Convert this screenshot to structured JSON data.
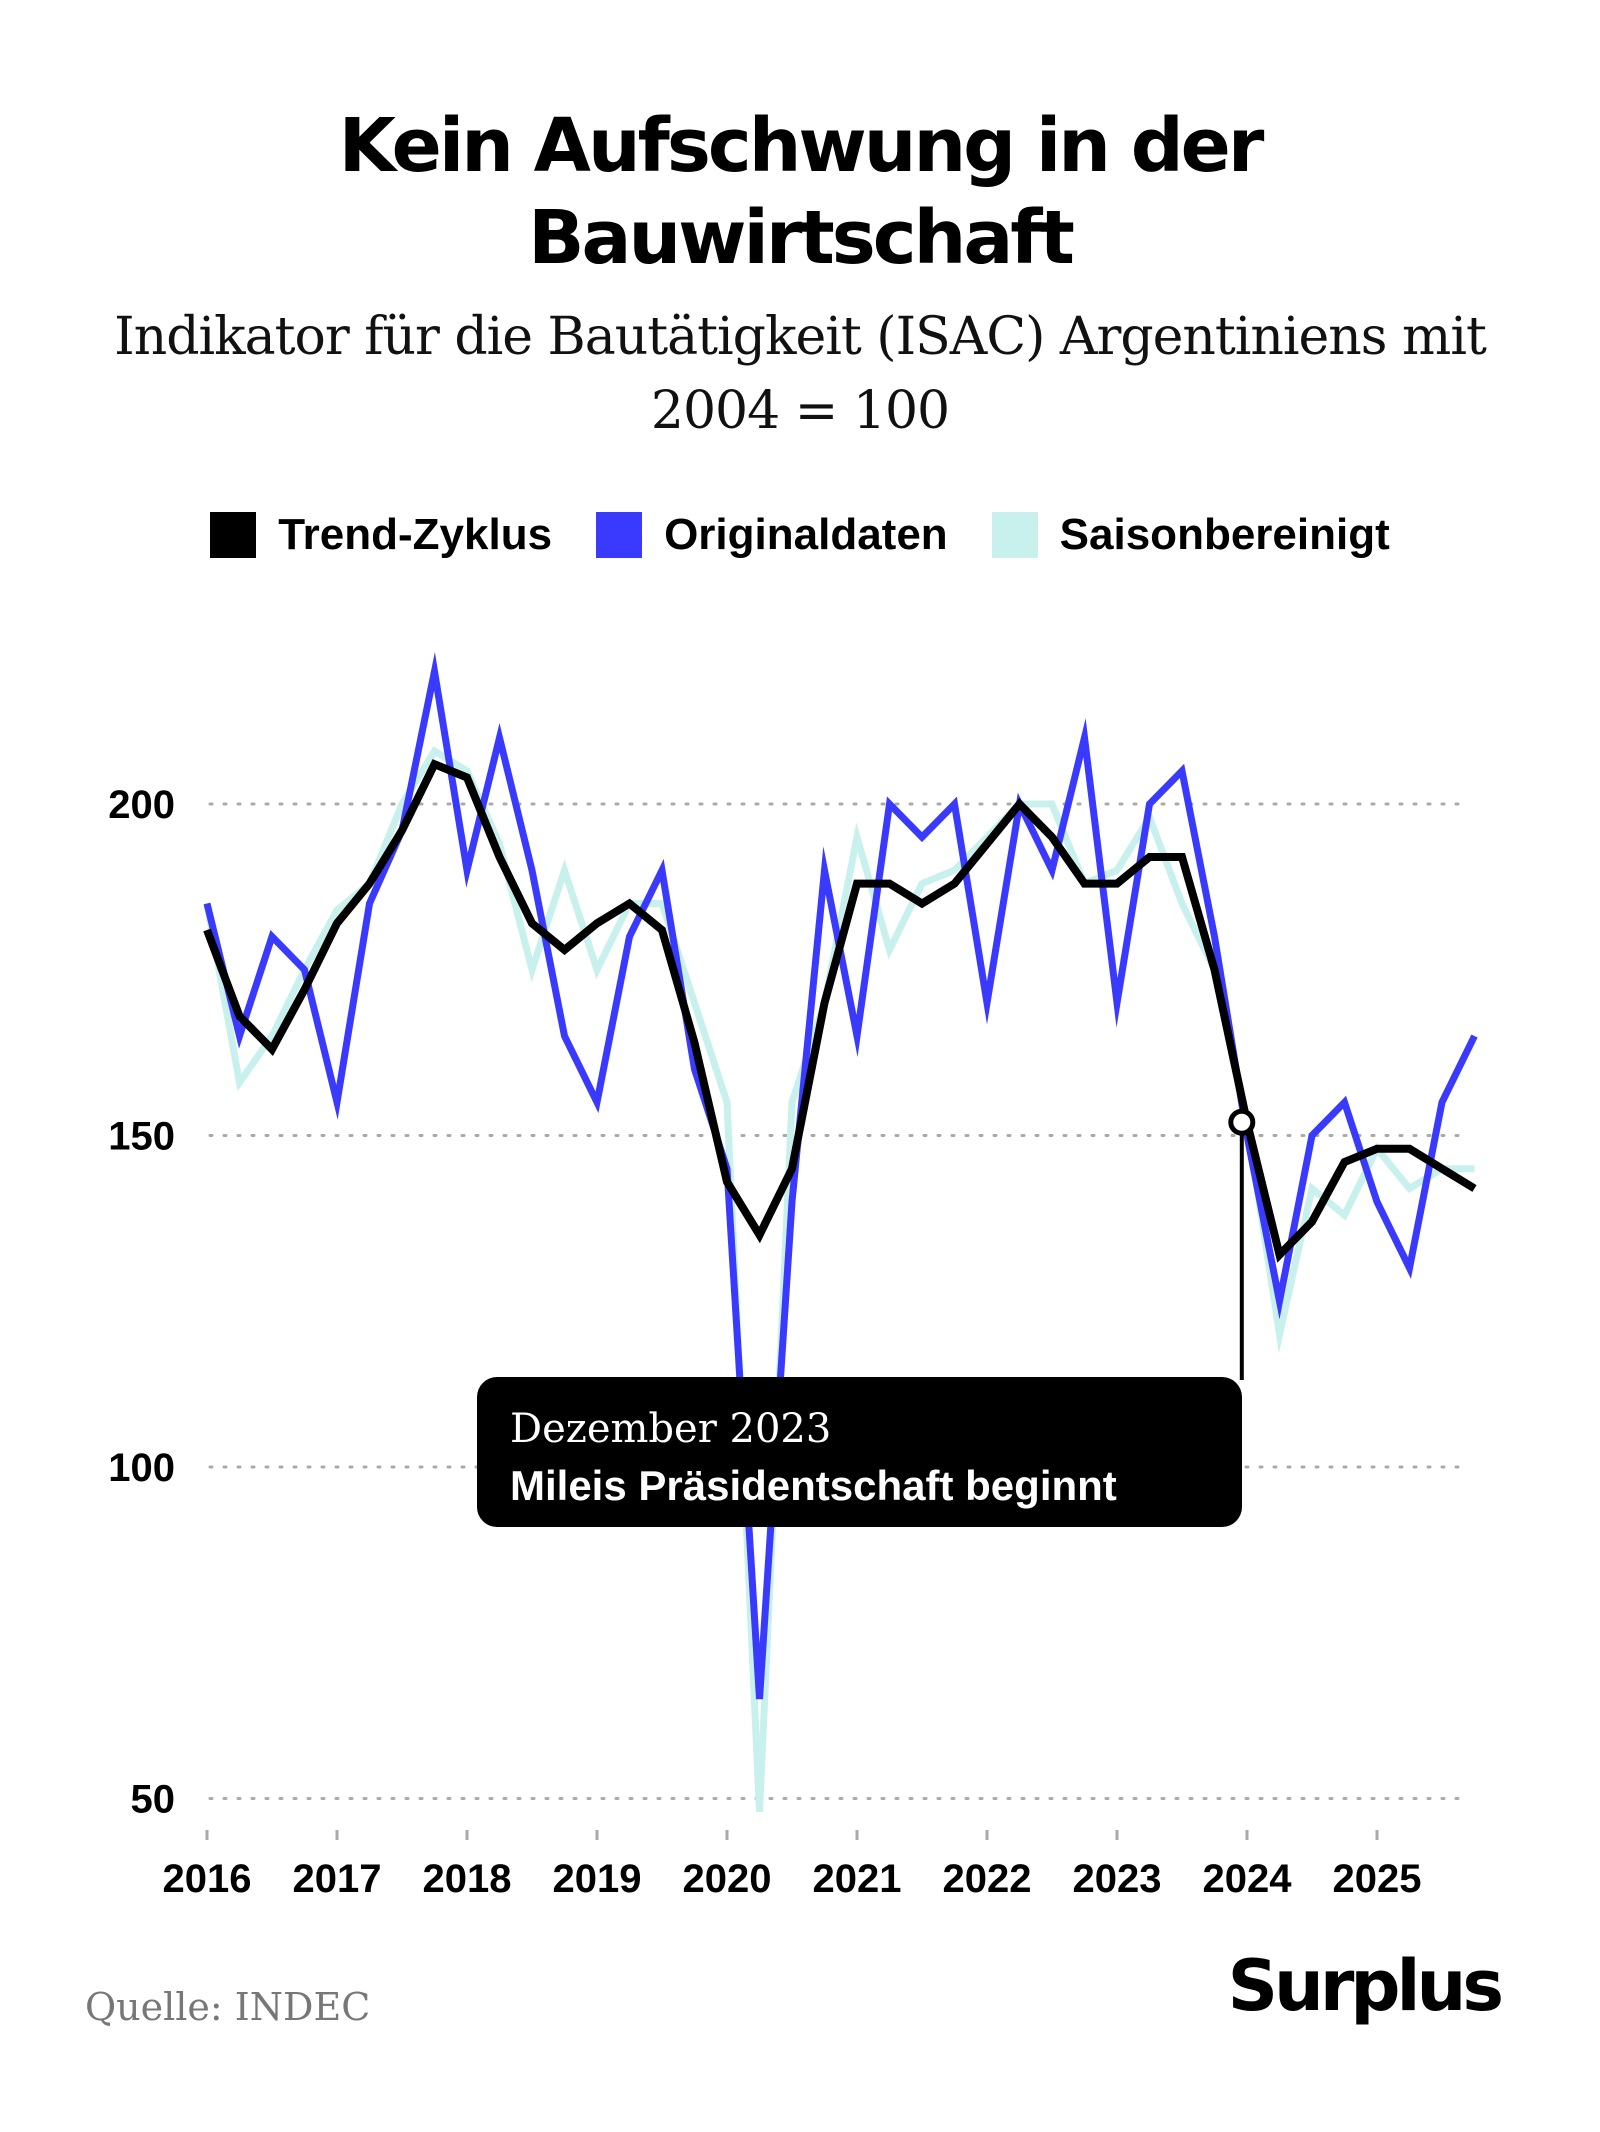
{
  "header": {
    "title_line1": "Kein Aufschwung in der",
    "title_line2": "Bauwirtschaft",
    "subtitle_line1": "Indikator für die Bautätigkeit (ISAC) Argentiniens mit",
    "subtitle_line2": "2004 = 100"
  },
  "legend": [
    {
      "label": "Trend-Zyklus",
      "color": "#000000"
    },
    {
      "label": "Originaldaten",
      "color": "#3a3aff"
    },
    {
      "label": "Saisonbereinigt",
      "color": "#c8f1ee"
    }
  ],
  "annotation": {
    "line1": "Dezember 2023",
    "line2": "Mileis Präsidentschaft beginnt",
    "date": 2023.96,
    "value": 152
  },
  "footer": {
    "source": "Quelle: INDEC",
    "brand": "Surplus"
  },
  "chart_data": {
    "type": "line",
    "x_ticks": [
      "2016",
      "2017",
      "2018",
      "2019",
      "2020",
      "2021",
      "2022",
      "2023",
      "2024",
      "2025"
    ],
    "y_ticks": [
      50,
      100,
      150,
      200
    ],
    "ylim": [
      48,
      222
    ],
    "xlim": [
      2016,
      2025.8
    ],
    "grid": "horizontal-dotted",
    "legend_position": "top-center",
    "x": [
      2016.0,
      2016.25,
      2016.5,
      2016.75,
      2017.0,
      2017.25,
      2017.5,
      2017.75,
      2018.0,
      2018.25,
      2018.5,
      2018.75,
      2019.0,
      2019.25,
      2019.5,
      2019.75,
      2020.0,
      2020.25,
      2020.5,
      2020.75,
      2021.0,
      2021.25,
      2021.5,
      2021.75,
      2022.0,
      2022.25,
      2022.5,
      2022.75,
      2023.0,
      2023.25,
      2023.5,
      2023.75,
      2024.0,
      2024.25,
      2024.5,
      2024.75,
      2025.0,
      2025.25,
      2025.5,
      2025.75
    ],
    "series": [
      {
        "name": "Trend-Zyklus",
        "color": "#000000",
        "values": [
          181,
          168,
          163,
          172,
          182,
          188,
          196,
          206,
          204,
          192,
          182,
          178,
          182,
          185,
          181,
          164,
          143,
          135,
          145,
          170,
          188,
          188,
          185,
          188,
          194,
          200,
          195,
          188,
          188,
          192,
          192,
          175,
          152,
          132,
          137,
          146,
          148,
          148,
          145,
          142
        ]
      },
      {
        "name": "Originaldaten",
        "color": "#3a3aff",
        "values": [
          185,
          165,
          180,
          175,
          155,
          185,
          196,
          220,
          190,
          210,
          190,
          165,
          155,
          180,
          190,
          160,
          145,
          65,
          140,
          190,
          165,
          200,
          195,
          200,
          170,
          200,
          190,
          210,
          170,
          200,
          205,
          180,
          150,
          125,
          150,
          155,
          140,
          130,
          155,
          165
        ]
      },
      {
        "name": "Saisonbereinigt",
        "color": "#c8f1ee",
        "values": [
          185,
          158,
          165,
          175,
          184,
          188,
          200,
          208,
          205,
          194,
          175,
          190,
          175,
          185,
          185,
          170,
          155,
          48,
          155,
          170,
          195,
          178,
          188,
          190,
          195,
          200,
          200,
          188,
          190,
          198,
          185,
          175,
          152,
          120,
          142,
          138,
          148,
          142,
          145,
          145
        ]
      }
    ]
  }
}
